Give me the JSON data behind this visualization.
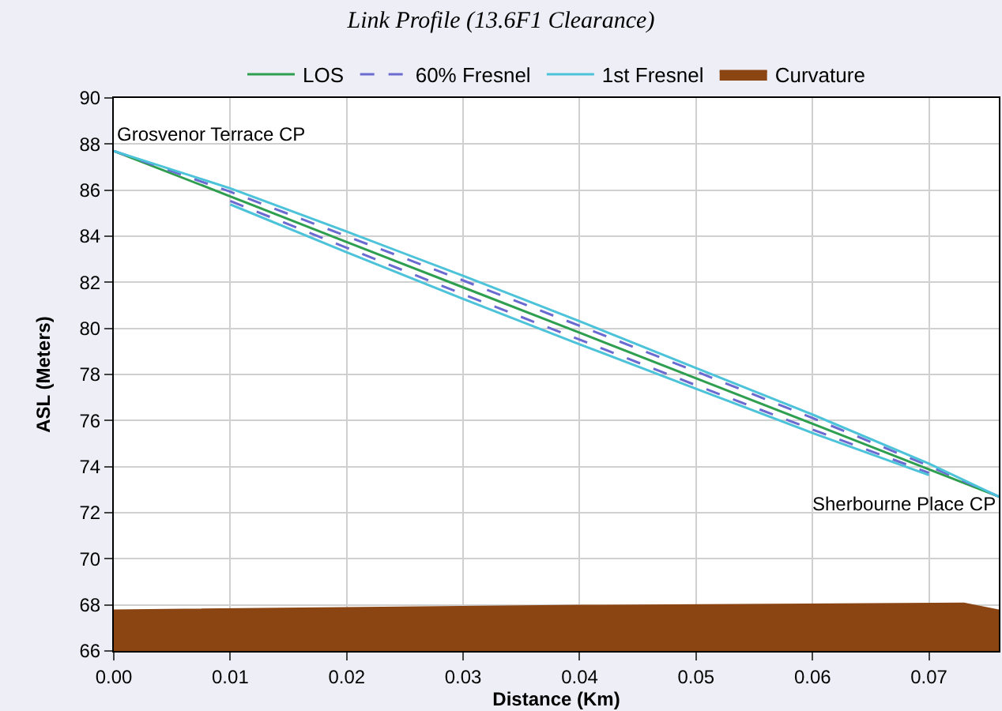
{
  "chart_data": {
    "type": "line",
    "title": "Link Profile (13.6F1 Clearance)",
    "xlabel": "Distance (Km)",
    "ylabel": "ASL (Meters)",
    "x": [
      0,
      0.01,
      0.02,
      0.03,
      0.04,
      0.05,
      0.06,
      0.07,
      0.076
    ],
    "series": [
      {
        "name": "LOS",
        "color": "#2e9e4f",
        "line_style": "solid",
        "values": [
          87.7,
          85.73,
          83.75,
          81.78,
          79.81,
          77.83,
          75.86,
          73.88,
          72.7
        ]
      },
      {
        "name": "60% Fresnel",
        "color": "#6a6ad0",
        "line_style": "dashed",
        "values": [
          87.7,
          85.93,
          84.0,
          82.08,
          80.11,
          78.13,
          76.11,
          74.03,
          72.7
        ]
      },
      {
        "color": "#6a6ad0",
        "line_style": "dashed",
        "values": [
          null,
          85.53,
          83.5,
          81.48,
          79.51,
          77.53,
          75.61,
          73.73,
          null
        ]
      },
      {
        "name": "1st Fresnel",
        "color": "#4cc3d9",
        "line_style": "solid",
        "values": [
          87.7,
          86.08,
          84.2,
          82.28,
          80.31,
          78.28,
          76.26,
          74.13,
          72.7
        ]
      },
      {
        "color": "#4cc3d9",
        "line_style": "solid",
        "values": [
          null,
          85.38,
          83.3,
          81.28,
          79.31,
          77.38,
          75.46,
          73.63,
          null
        ]
      },
      {
        "name": "Curvature",
        "type": "area",
        "color": "#8b4513",
        "x": [
          0,
          0.04,
          0.073,
          0.076
        ],
        "values": [
          67.75,
          67.95,
          68.05,
          67.75
        ]
      }
    ],
    "xlim": [
      0,
      0.076
    ],
    "xticks": [
      {
        "value": 0,
        "label": "0.00"
      },
      {
        "value": 0.01,
        "label": "0.01"
      },
      {
        "value": 0.02,
        "label": "0.02"
      },
      {
        "value": 0.03,
        "label": "0.03"
      },
      {
        "value": 0.04,
        "label": "0.04"
      },
      {
        "value": 0.05,
        "label": "0.05"
      },
      {
        "value": 0.06,
        "label": "0.06"
      },
      {
        "value": 0.07,
        "label": "0.07"
      }
    ],
    "ylim": [
      66,
      90
    ],
    "yticks": [
      66,
      68,
      70,
      72,
      74,
      76,
      78,
      80,
      82,
      84,
      86,
      88,
      90
    ],
    "annotations": [
      {
        "text": "Grosvenor Terrace CP",
        "x": 0,
        "y": 87.7
      },
      {
        "text": "Sherbourne Place CP",
        "x": 0.076,
        "y": 72.7
      }
    ],
    "grid": true,
    "legend": "top",
    "marker": "none"
  }
}
